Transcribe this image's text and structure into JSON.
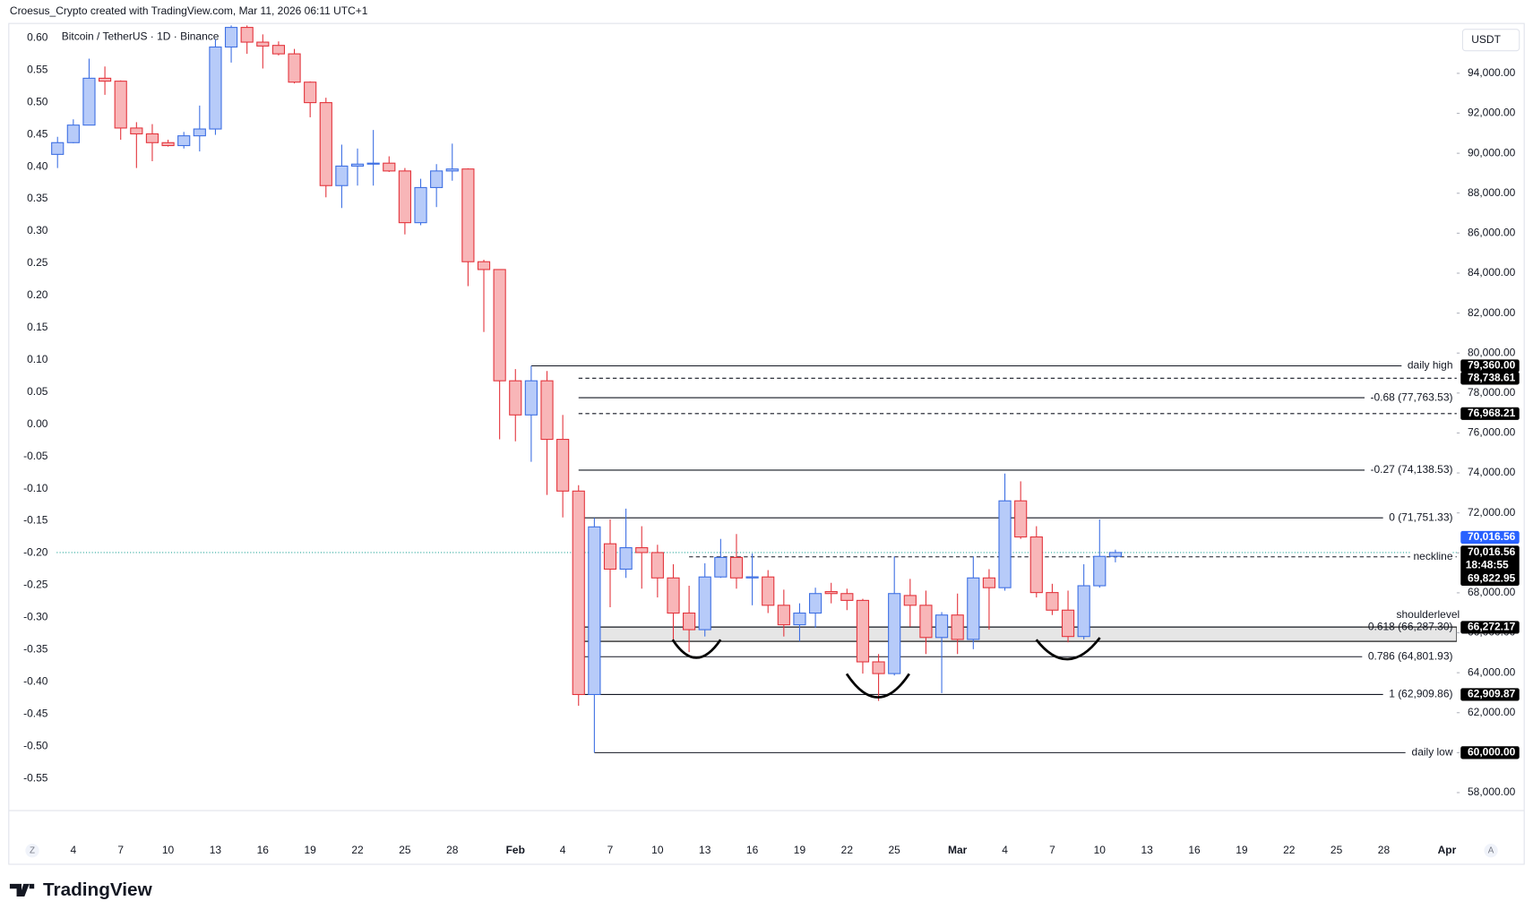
{
  "header": "Croesus_Crypto created with TradingView.com, Mar 11, 2026 06:11 UTC+1",
  "logo": "TradingView",
  "chart_data": {
    "type": "candlestick",
    "title": "Bitcoin / TetherUS · 1D · Binance",
    "currency": "USDT",
    "axis_buttons": [
      "Z",
      "A"
    ],
    "x": [
      "Jan 3",
      "Jan 4",
      "Jan 5",
      "Jan 6",
      "Jan 7",
      "Jan 8",
      "Jan 9",
      "Jan 10",
      "Jan 11",
      "Jan 12",
      "Jan 13",
      "Jan 14",
      "Jan 15",
      "Jan 16",
      "Jan 17",
      "Jan 18",
      "Jan 19",
      "Jan 20",
      "Jan 21",
      "Jan 22",
      "Jan 23",
      "Jan 24",
      "Jan 25",
      "Jan 26",
      "Jan 27",
      "Jan 28",
      "Jan 29",
      "Jan 30",
      "Jan 31",
      "Feb 1",
      "Feb 2",
      "Feb 3",
      "Feb 4",
      "Feb 5",
      "Feb 6",
      "Feb 7",
      "Feb 8",
      "Feb 9",
      "Feb 10",
      "Feb 11",
      "Feb 12",
      "Feb 13",
      "Feb 14",
      "Feb 15",
      "Feb 16",
      "Feb 17",
      "Feb 18",
      "Feb 19",
      "Feb 20",
      "Feb 21",
      "Feb 22",
      "Feb 23",
      "Feb 24",
      "Feb 25",
      "Feb 26",
      "Feb 27",
      "Feb 28",
      "Mar 1",
      "Mar 2",
      "Mar 3",
      "Mar 4",
      "Mar 5",
      "Mar 6",
      "Mar 7",
      "Mar 8",
      "Mar 9",
      "Mar 10",
      "Mar 11"
    ],
    "open": [
      89945,
      90532,
      91411,
      93756,
      93609,
      91264,
      90971,
      90532,
      90385,
      90874,
      91215,
      95319,
      96300,
      95563,
      95400,
      94977,
      93560,
      92535,
      88382,
      89359,
      89457,
      89505,
      89115,
      86526,
      88284,
      89115,
      89213,
      84572,
      84181,
      78612,
      76903,
      78612,
      75681,
      73092,
      62909,
      70454,
      69184,
      70258,
      70014,
      68745,
      66986,
      66155,
      68793,
      69770,
      68745,
      68793,
      67376,
      66400,
      66986,
      68060,
      67962,
      67620,
      64544,
      63957,
      67865,
      67376,
      65764,
      66888,
      65667,
      68745,
      68256,
      72603,
      70796,
      68012,
      67132,
      65813,
      68354,
      69822.95
    ],
    "high": [
      90825,
      91700,
      94733,
      94342,
      93650,
      91557,
      91460,
      90678,
      91069,
      92388,
      95710,
      96400,
      96400,
      95954,
      95600,
      95221,
      93600,
      92779,
      90434,
      90238,
      91166,
      89848,
      89262,
      88724,
      89457,
      90483,
      89250,
      84670,
      84200,
      79198,
      79360,
      79100,
      76903,
      73385,
      71751,
      71675,
      72213,
      71333,
      70405,
      69429,
      68354,
      69478,
      70698,
      70942,
      69966,
      69136,
      68158,
      67474,
      68256,
      68500,
      68207,
      67700,
      64935,
      69819,
      68696,
      68110,
      67034,
      67962,
      69819,
      69184,
      73971,
      73580,
      71333,
      68452,
      68110,
      69429,
      71675,
      70160
    ],
    "low": [
      89262,
      90500,
      91400,
      92925,
      90678,
      89262,
      89604,
      90336,
      90238,
      90092,
      90922,
      94537,
      94977,
      94244,
      94900,
      93500,
      91802,
      87796,
      87259,
      88382,
      88382,
      89066,
      85940,
      86400,
      87307,
      88627,
      83351,
      81055,
      75681,
      75583,
      74557,
      72897,
      71773,
      62345,
      60000,
      67278,
      68745,
      68207,
      67768,
      65667,
      65032,
      65813,
      68745,
      68207,
      67376,
      66986,
      65813,
      65569,
      66253,
      67474,
      67132,
      63957,
      62589,
      63860,
      66302,
      64935,
      62980,
      64935,
      65178,
      66155,
      68110,
      70698,
      67768,
      66888,
      65520,
      65667,
      68256,
      69526
    ],
    "close": [
      90532,
      91411,
      93756,
      93609,
      91264,
      90971,
      90532,
      90385,
      90874,
      91215,
      95319,
      96300,
      95563,
      95368,
      94977,
      93560,
      92535,
      88382,
      89359,
      89457,
      89505,
      89115,
      86526,
      88284,
      89115,
      89213,
      84572,
      84181,
      78612,
      76903,
      78612,
      75681,
      73092,
      62909,
      71300,
      69184,
      70258,
      70014,
      68745,
      66986,
      66155,
      68793,
      69770,
      68745,
      68800,
      67376,
      66400,
      66986,
      67962,
      67962,
      67620,
      64544,
      63957,
      67962,
      67376,
      65764,
      66888,
      65667,
      68745,
      68256,
      72603,
      70796,
      68012,
      67132,
      65813,
      68354,
      69822.95,
      70016.56
    ],
    "up_color": "#b7cbf9",
    "up_border": "#3d6fe3",
    "down_color": "#f8b6b8",
    "down_border": "#e3343c",
    "xlim": [
      "Jan 1",
      "Apr 1"
    ],
    "xticks": [
      {
        "value": "Jan 4",
        "label": "4"
      },
      {
        "value": "Jan 7",
        "label": "7"
      },
      {
        "value": "Jan 10",
        "label": "10"
      },
      {
        "value": "Jan 13",
        "label": "13"
      },
      {
        "value": "Jan 16",
        "label": "16"
      },
      {
        "value": "Jan 19",
        "label": "19"
      },
      {
        "value": "Jan 22",
        "label": "22"
      },
      {
        "value": "Jan 25",
        "label": "25"
      },
      {
        "value": "Jan 28",
        "label": "28"
      },
      {
        "value": "Feb 1",
        "label": "Feb"
      },
      {
        "value": "Feb 4",
        "label": "4"
      },
      {
        "value": "Feb 7",
        "label": "7"
      },
      {
        "value": "Feb 10",
        "label": "10"
      },
      {
        "value": "Feb 13",
        "label": "13"
      },
      {
        "value": "Feb 16",
        "label": "16"
      },
      {
        "value": "Feb 19",
        "label": "19"
      },
      {
        "value": "Feb 22",
        "label": "22"
      },
      {
        "value": "Feb 25",
        "label": "25"
      },
      {
        "value": "Mar 1",
        "label": "Mar"
      },
      {
        "value": "Mar 4",
        "label": "4"
      },
      {
        "value": "Mar 7",
        "label": "7"
      },
      {
        "value": "Mar 10",
        "label": "10"
      },
      {
        "value": "Mar 13",
        "label": "13"
      },
      {
        "value": "Mar 16",
        "label": "16"
      },
      {
        "value": "Mar 19",
        "label": "19"
      },
      {
        "value": "Mar 22",
        "label": "22"
      },
      {
        "value": "Mar 25",
        "label": "25"
      },
      {
        "value": "Mar 28",
        "label": "28"
      },
      {
        "value": "Apr 1",
        "label": "Apr"
      }
    ],
    "ylim": [
      57100,
      96450
    ],
    "yticks": [
      {
        "value": 94000,
        "label": "94,000.00"
      },
      {
        "value": 92000,
        "label": "92,000.00"
      },
      {
        "value": 90000,
        "label": "90,000.00"
      },
      {
        "value": 88000,
        "label": "88,000.00"
      },
      {
        "value": 86000,
        "label": "86,000.00"
      },
      {
        "value": 84000,
        "label": "84,000.00"
      },
      {
        "value": 82000,
        "label": "82,000.00"
      },
      {
        "value": 80000,
        "label": "80,000.00"
      },
      {
        "value": 78000,
        "label": "78,000.00"
      },
      {
        "value": 76000,
        "label": "76,000.00"
      },
      {
        "value": 74000,
        "label": "74,000.00"
      },
      {
        "value": 72000,
        "label": "72,000.00"
      },
      {
        "value": 70000,
        "label": "70,000.00"
      },
      {
        "value": 68000,
        "label": "68,000.00"
      },
      {
        "value": 66000,
        "label": "66,000.00"
      },
      {
        "value": 64000,
        "label": "64,000.00"
      },
      {
        "value": 62000,
        "label": "62,000.00"
      },
      {
        "value": 60000,
        "label": "60,000.00"
      },
      {
        "value": 58000,
        "label": "58,000.00"
      }
    ],
    "y2lim": [
      -0.6,
      0.621
    ],
    "y2ticks": [
      {
        "value": 0.6,
        "label": "0.60"
      },
      0.55,
      {
        "value": 0.5,
        "label": "0.50"
      },
      0.45,
      {
        "value": 0.4,
        "label": "0.40"
      },
      0.35,
      {
        "value": 0.3,
        "label": "0.30"
      },
      0.25,
      {
        "value": 0.2,
        "label": "0.20"
      },
      0.15,
      {
        "value": 0.1,
        "label": "0.10"
      },
      0.05,
      {
        "value": 0,
        "label": "0.00"
      },
      -0.05,
      {
        "value": -0.1,
        "label": "-0.10"
      },
      -0.15,
      {
        "value": -0.2,
        "label": "-0.20"
      },
      -0.25,
      {
        "value": -0.3,
        "label": "-0.30"
      },
      -0.35,
      {
        "value": -0.4,
        "label": "-0.40"
      },
      -0.45,
      {
        "value": -0.5,
        "label": "-0.50"
      },
      -0.55
    ],
    "grid": false,
    "levels": [
      {
        "text": "daily high",
        "value": 79360,
        "start": "Feb 2",
        "style": "solid"
      },
      {
        "value": 78738.61,
        "start": "Feb 5",
        "style": "dashed"
      },
      {
        "text": "-0.68 (77,763.53)",
        "value": 77763.53,
        "start": "Feb 5",
        "style": "solid"
      },
      {
        "value": 76968.21,
        "start": "Feb 5",
        "style": "dashed"
      },
      {
        "text": "-0.27 (74,138.53)",
        "value": 74138.53,
        "start": "Feb 5",
        "style": "solid"
      },
      {
        "text": "0 (71,751.33)",
        "value": 71751.33,
        "start": "Feb 5",
        "style": "solid"
      },
      {
        "text": "neckline",
        "value": 69800,
        "start": "Feb 12",
        "style": "dashed"
      },
      {
        "text": "0.618 (66,287.30)",
        "value": 66287.3,
        "start": "Feb 5",
        "style": "solid"
      },
      {
        "text": "0.786 (64,801.93)",
        "value": 64801.93,
        "start": "Feb 5",
        "style": "solid"
      },
      {
        "text": "1 (62,909.86)",
        "value": 62909.86,
        "start": "Feb 5",
        "style": "solid"
      },
      {
        "text": "daily low",
        "value": 60000,
        "start": "Feb 6",
        "style": "solid"
      }
    ],
    "zones": [
      {
        "text": "shoulderlevel",
        "from": 65570,
        "to": 66287.3,
        "start": "Feb 5"
      }
    ],
    "price_tags": [
      {
        "value": 79360,
        "label": "79,360.00"
      },
      {
        "value": 78738.61,
        "label": "78,738.61"
      },
      {
        "value": 76968.21,
        "label": "76,968.21"
      },
      {
        "value": 66272.17,
        "label": "66,272.17"
      },
      {
        "value": 62909.87,
        "label": "62,909.87"
      },
      {
        "value": 60000,
        "label": "60,000.00"
      }
    ],
    "last_price": {
      "value": 70016.56,
      "label": "70,016.56",
      "countdown": "18:48:55",
      "prev_close": 69822.95,
      "prev_close_label": "69,822.95",
      "color": "#2962ff"
    }
  }
}
